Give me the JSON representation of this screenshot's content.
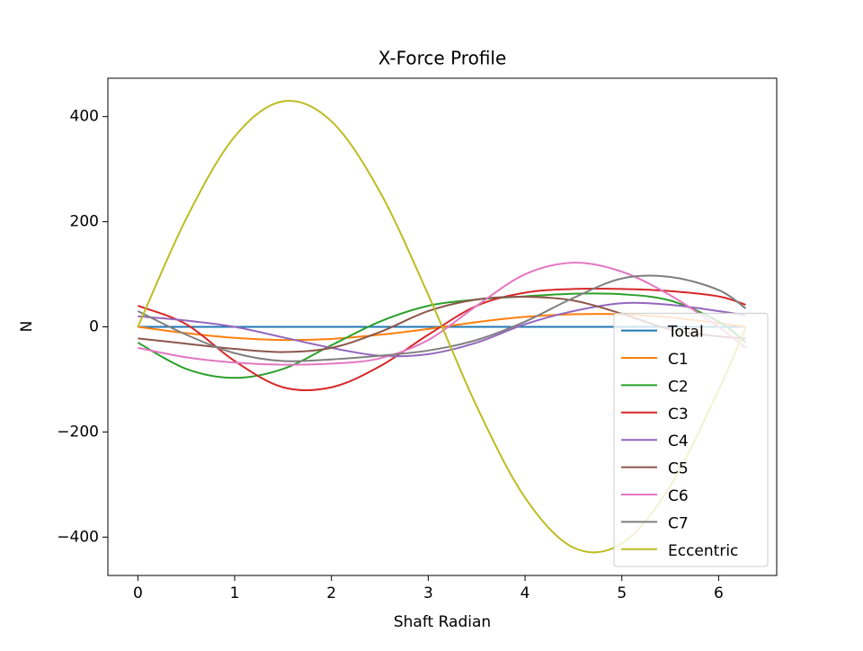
{
  "chart_data": {
    "type": "line",
    "title": "X-Force Profile",
    "x_label": "Shaft Radian",
    "y_label": "N",
    "x": [
      0,
      0.5,
      1,
      1.5,
      2,
      2.5,
      3,
      3.5,
      4,
      4.5,
      5,
      5.5,
      6,
      6.28
    ],
    "series": [
      {
        "name": "Total",
        "color": "#1f77b4",
        "values": [
          0,
          0,
          0,
          0,
          0,
          0,
          0,
          0,
          0,
          0,
          0,
          0,
          0,
          0
        ]
      },
      {
        "name": "C1",
        "color": "#ff7f0e",
        "values": [
          0,
          -12,
          -21,
          -25,
          -23,
          -15,
          -4,
          9,
          19,
          24,
          24,
          18,
          7,
          0
        ]
      },
      {
        "name": "C2",
        "color": "#2ca02c",
        "values": [
          -30,
          -80,
          -97,
          -80,
          -35,
          10,
          40,
          52,
          58,
          63,
          62,
          50,
          10,
          -30
        ]
      },
      {
        "name": "C3",
        "color": "#d62728",
        "values": [
          40,
          5,
          -65,
          -115,
          -115,
          -75,
          -15,
          40,
          65,
          72,
          72,
          68,
          58,
          42
        ]
      },
      {
        "name": "C4",
        "color": "#9467bd",
        "values": [
          20,
          12,
          0,
          -20,
          -40,
          -55,
          -52,
          -30,
          5,
          30,
          45,
          42,
          30,
          22
        ]
      },
      {
        "name": "C5",
        "color": "#8c564b",
        "values": [
          -22,
          -32,
          -42,
          -48,
          -40,
          -10,
          30,
          52,
          57,
          50,
          25,
          -5,
          -18,
          -22
        ]
      },
      {
        "name": "C6",
        "color": "#e377c2",
        "values": [
          -40,
          -58,
          -68,
          -72,
          -70,
          -60,
          -25,
          40,
          100,
          122,
          105,
          60,
          0,
          -40
        ]
      },
      {
        "name": "C7",
        "color": "#7f7f7f",
        "values": [
          30,
          -15,
          -50,
          -65,
          -62,
          -55,
          -45,
          -25,
          10,
          55,
          92,
          95,
          70,
          35
        ]
      },
      {
        "name": "Eccentric",
        "color": "#bcbd22",
        "values": [
          0,
          206,
          362,
          429,
          391,
          257,
          61,
          -151,
          -325,
          -420,
          -412,
          -303,
          -120,
          -1
        ]
      }
    ],
    "xlim": [
      -0.31,
      6.6
    ],
    "ylim": [
      -473,
      473
    ],
    "xticks": [
      0,
      1,
      2,
      3,
      4,
      5,
      6
    ],
    "yticks": [
      {
        "value": -400,
        "label": "−400"
      },
      {
        "value": -200,
        "label": "−200"
      },
      0,
      200,
      400
    ],
    "legend": "lower right"
  }
}
